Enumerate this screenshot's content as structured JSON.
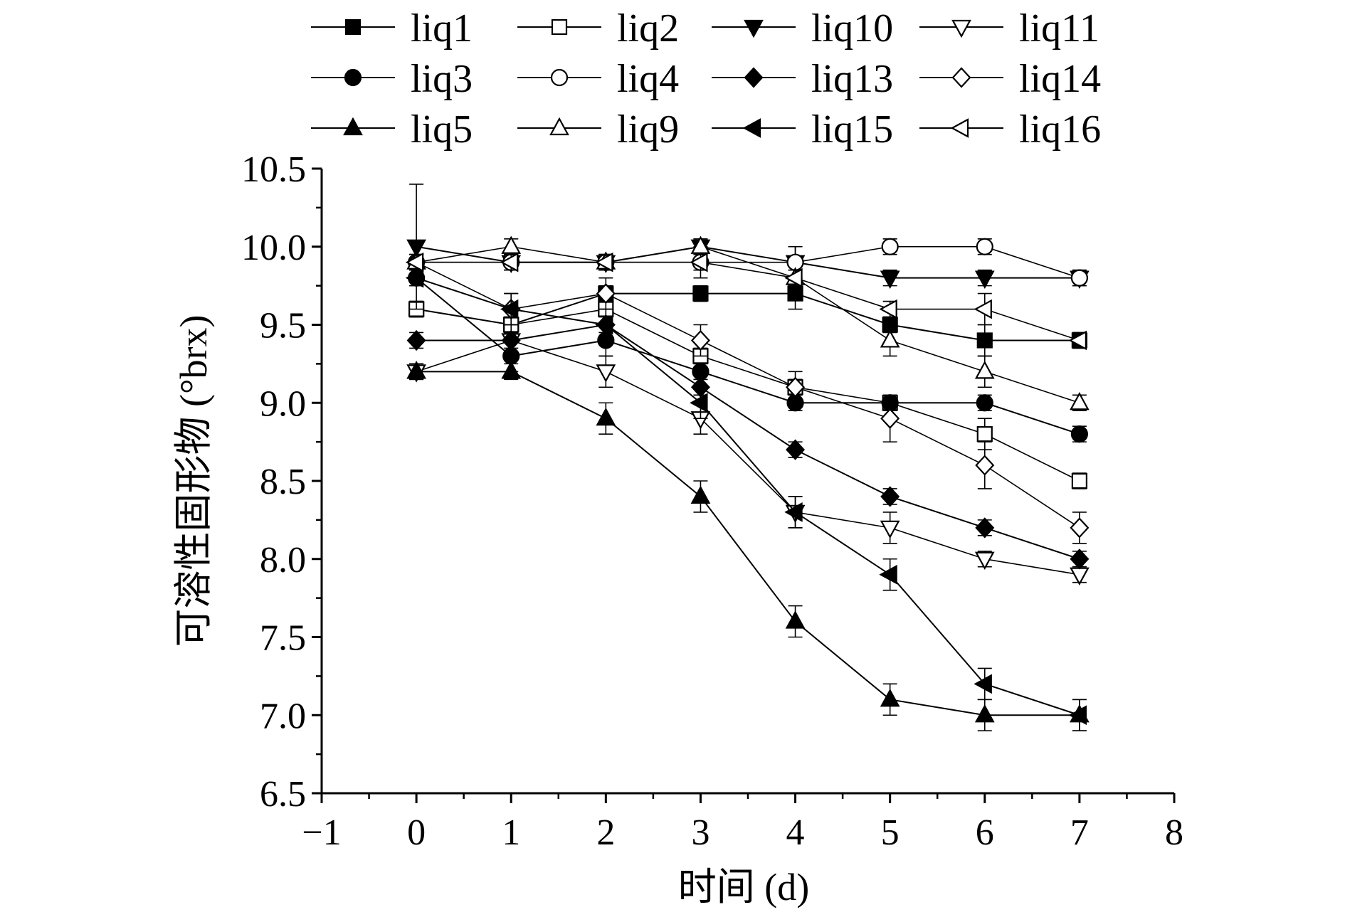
{
  "chart_data": {
    "type": "line",
    "xlabel": "时间 (d)",
    "ylabel": "可溶性固形物 (°brx)",
    "xlim": [
      -1,
      8
    ],
    "ylim": [
      6.5,
      10.5
    ],
    "xticks": [
      -1,
      0,
      1,
      2,
      3,
      4,
      5,
      6,
      7,
      8
    ],
    "yticks": [
      6.5,
      7.0,
      7.5,
      8.0,
      8.5,
      9.0,
      9.5,
      10.0,
      10.5
    ],
    "x_tick_labels": [
      "−1",
      "0",
      "1",
      "2",
      "3",
      "4",
      "5",
      "6",
      "7",
      "8"
    ],
    "y_tick_labels": [
      "6.5",
      "7.0",
      "7.5",
      "8.0",
      "8.5",
      "9.0",
      "9.5",
      "10.0",
      "10.5"
    ],
    "legend_position": "top",
    "legend_columns": 4,
    "grid": false,
    "x": [
      0,
      1,
      2,
      3,
      4,
      5,
      6,
      7
    ],
    "series": [
      {
        "name": "liq1",
        "marker": "square",
        "fill": "filled",
        "values": [
          9.6,
          9.5,
          9.7,
          9.7,
          9.7,
          9.5,
          9.4,
          9.4
        ],
        "errors": [
          0.05,
          0.05,
          0.05,
          0.05,
          0.1,
          0.05,
          0.1,
          0.05
        ]
      },
      {
        "name": "liq2",
        "marker": "square",
        "fill": "open",
        "values": [
          9.6,
          9.5,
          9.6,
          9.3,
          9.1,
          9.0,
          8.8,
          8.5
        ],
        "errors": [
          0.05,
          0.05,
          0.1,
          0.05,
          0.05,
          0.05,
          0.1,
          0.05
        ]
      },
      {
        "name": "liq10",
        "marker": "triangle-down",
        "fill": "filled",
        "values": [
          10.0,
          9.9,
          9.9,
          10.0,
          9.9,
          9.8,
          9.8,
          9.8
        ],
        "errors": [
          0.4,
          0.05,
          0.05,
          0.05,
          0.1,
          0.05,
          0.05,
          0.05
        ]
      },
      {
        "name": "liq11",
        "marker": "triangle-down",
        "fill": "open",
        "values": [
          9.2,
          9.4,
          9.2,
          8.9,
          8.3,
          8.2,
          8.0,
          7.9
        ],
        "errors": [
          0.05,
          0.1,
          0.1,
          0.1,
          0.1,
          0.1,
          0.05,
          0.05
        ]
      },
      {
        "name": "liq3",
        "marker": "circle",
        "fill": "filled",
        "values": [
          9.8,
          9.3,
          9.4,
          9.2,
          9.0,
          9.0,
          9.0,
          8.8
        ],
        "errors": [
          0.05,
          0.1,
          0.1,
          0.05,
          0.05,
          0.05,
          0.05,
          0.05
        ]
      },
      {
        "name": "liq4",
        "marker": "circle",
        "fill": "open",
        "values": [
          9.9,
          9.9,
          9.9,
          9.9,
          9.9,
          10.0,
          10.0,
          9.8
        ],
        "errors": [
          0.05,
          0.05,
          0.05,
          0.1,
          0.1,
          0.05,
          0.05,
          0.05
        ]
      },
      {
        "name": "liq13",
        "marker": "diamond",
        "fill": "filled",
        "values": [
          9.4,
          9.4,
          9.5,
          9.1,
          8.7,
          8.4,
          8.2,
          8.0
        ],
        "errors": [
          0.05,
          0.05,
          0.05,
          0.05,
          0.05,
          0.05,
          0.05,
          0.05
        ]
      },
      {
        "name": "liq14",
        "marker": "diamond",
        "fill": "open",
        "values": [
          9.9,
          9.6,
          9.7,
          9.4,
          9.1,
          8.9,
          8.6,
          8.2
        ],
        "errors": [
          0.05,
          0.1,
          0.1,
          0.1,
          0.1,
          0.15,
          0.15,
          0.1
        ]
      },
      {
        "name": "liq5",
        "marker": "triangle-up",
        "fill": "filled",
        "values": [
          9.2,
          9.2,
          8.9,
          8.4,
          7.6,
          7.1,
          7.0,
          7.0
        ],
        "errors": [
          0.05,
          0.05,
          0.1,
          0.1,
          0.1,
          0.1,
          0.1,
          0.1
        ]
      },
      {
        "name": "liq9",
        "marker": "triangle-up",
        "fill": "open",
        "values": [
          9.9,
          10.0,
          9.9,
          10.0,
          9.8,
          9.4,
          9.2,
          9.0
        ],
        "errors": [
          0.05,
          0.05,
          0.05,
          0.05,
          0.05,
          0.1,
          0.1,
          0.05
        ]
      },
      {
        "name": "liq15",
        "marker": "triangle-left",
        "fill": "filled",
        "values": [
          9.8,
          9.6,
          9.5,
          9.0,
          8.3,
          7.9,
          7.2,
          7.0
        ],
        "errors": [
          0.05,
          0.1,
          0.1,
          0.1,
          0.1,
          0.1,
          0.1,
          0.1
        ]
      },
      {
        "name": "liq16",
        "marker": "triangle-left",
        "fill": "open",
        "values": [
          9.9,
          9.9,
          9.9,
          9.9,
          9.8,
          9.6,
          9.6,
          9.4
        ],
        "errors": [
          0.05,
          0.05,
          0.05,
          0.05,
          0.05,
          0.05,
          0.1,
          0.05
        ]
      }
    ]
  }
}
